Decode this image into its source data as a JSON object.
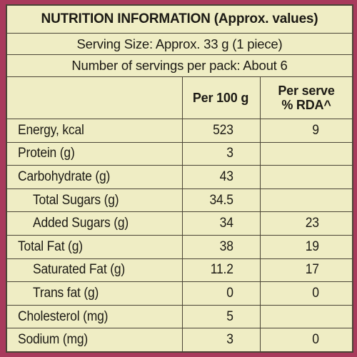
{
  "title": "NUTRITION INFORMATION (Approx. values)",
  "serving_size": "Serving Size: Approx. 33 g (1 piece)",
  "servings_per_pack": "Number of servings per pack: About 6",
  "columns": {
    "per100": "Per 100 g",
    "per_serve_line1": "Per serve",
    "per_serve_line2": "% RDA^"
  },
  "rows": [
    {
      "nutrient": "Energy, kcal",
      "per100": "523",
      "rda": "9"
    },
    {
      "nutrient": "Protein (g)",
      "per100": "3",
      "rda": ""
    },
    {
      "nutrient": "Carbohydrate (g)",
      "per100": "43",
      "rda": ""
    },
    {
      "nutrient": "Total Sugars (g)",
      "per100": "34.5",
      "rda": ""
    },
    {
      "nutrient": "Added Sugars (g)",
      "per100": "34",
      "rda": "23"
    },
    {
      "nutrient": "Total Fat (g)",
      "per100": "38",
      "rda": "19"
    },
    {
      "nutrient": "Saturated Fat (g)",
      "per100": "11.2",
      "rda": "17"
    },
    {
      "nutrient": "Trans fat (g)",
      "per100": "0",
      "rda": "0"
    },
    {
      "nutrient": "Cholesterol (mg)",
      "per100": "5",
      "rda": ""
    },
    {
      "nutrient": "Sodium (mg)",
      "per100": "3",
      "rda": "0"
    }
  ],
  "colors": {
    "panel": "#efedc4",
    "border": "#4a4436",
    "packaging": "#a83a5c"
  }
}
